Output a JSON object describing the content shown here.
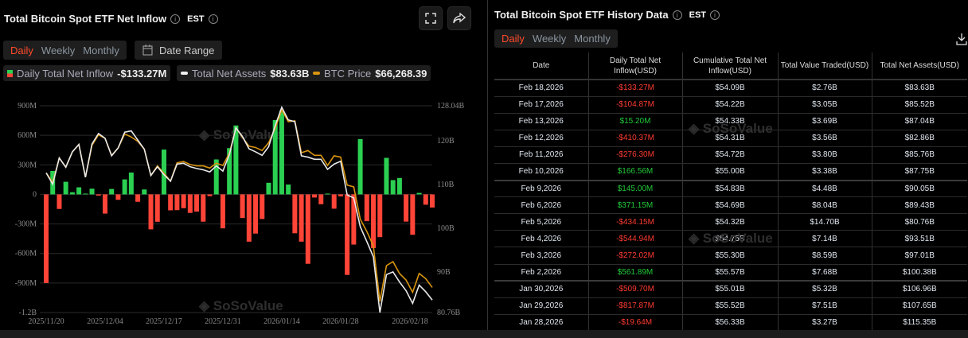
{
  "left": {
    "title": "Total Bitcoin Spot ETF Net Inflow",
    "timezone": "EST",
    "tabs": [
      "Daily",
      "Weekly",
      "Monthly"
    ],
    "active_tab": "Daily",
    "date_range_label": "Date Range",
    "legend": [
      {
        "label": "Daily Total Net Inflow",
        "value": "-$133.27M"
      },
      {
        "label": "Total Net Assets",
        "value": "$83.63B"
      },
      {
        "label": "BTC Price",
        "value": "$66,268.39"
      }
    ],
    "watermark": "SoSoValue"
  },
  "chart_data": {
    "type": "bar",
    "title": "Total Bitcoin Spot ETF Net Inflow",
    "colors": {
      "positive": "#2bd052",
      "negative": "#ff4438",
      "assets": "#e8e8e8",
      "price": "#d9950f"
    },
    "left_axis": {
      "ticks": [
        "900M",
        "600M",
        "300M",
        "0",
        "-300M",
        "-600M",
        "-900M",
        "-1.2B"
      ],
      "range_millions": [
        -1200,
        900
      ]
    },
    "right_axis": {
      "ticks": [
        "128.04B",
        "120B",
        "110B",
        "100B",
        "90B",
        "80.76B"
      ],
      "range_billions": [
        80.76,
        128.04
      ]
    },
    "x_tick_labels": [
      {
        "index": 0,
        "label": "2025/11/20"
      },
      {
        "index": 9,
        "label": "2025/12/04"
      },
      {
        "index": 18,
        "label": "2025/12/17"
      },
      {
        "index": 27,
        "label": "2025/12/31"
      },
      {
        "index": 36,
        "label": "2026/01/14"
      },
      {
        "index": 45,
        "label": "2026/01/28"
      },
      {
        "index": 59,
        "label": "2026/02/18"
      }
    ],
    "series": [
      {
        "name": "Daily Total Net Inflow (M USD)",
        "values": [
          -900,
          238,
          -148,
          128,
          22,
          72,
          8,
          58,
          -12,
          -195,
          55,
          -55,
          152,
          222,
          -75,
          50,
          -355,
          -278,
          455,
          -162,
          -160,
          -140,
          -188,
          -175,
          -277,
          -18,
          355,
          -345,
          470,
          700,
          -240,
          -480,
          -398,
          -250,
          118,
          755,
          850,
          100,
          -395,
          -480,
          -705,
          -32,
          -100,
          8,
          -145,
          -19.64,
          -817.87,
          -509.7,
          561.89,
          -272.02,
          -544.94,
          -434.15,
          371.15,
          145.0,
          166.56,
          -276.3,
          -410.37,
          15.2,
          -104.87,
          -133.27
        ]
      },
      {
        "name": "Total Net Assets (B USD)",
        "values": [
          112.7,
          110.1,
          116.1,
          114,
          117.5,
          119.2,
          111.7,
          119.3,
          121.7,
          120.6,
          116.6,
          118.4,
          122,
          122.3,
          120.2,
          118.1,
          112.1,
          114.1,
          112.3,
          110.8,
          114.7,
          114.9,
          114.1,
          113.7,
          113.4,
          112.9,
          114.3,
          113.1,
          116.9,
          123,
          121,
          118.2,
          117.5,
          116.7,
          118.7,
          123.5,
          127.7,
          124.8,
          124.4,
          116.6,
          116.3,
          115.8,
          115.8,
          113.5,
          114.7,
          115.35,
          107.65,
          106.96,
          100.38,
          97.01,
          93.51,
          80.76,
          89.43,
          90.05,
          87.75,
          85.76,
          82.86,
          87.04,
          85.52,
          83.63
        ]
      },
      {
        "name": "BTC Price (plotted on right-axis scale)",
        "values": [
          112.7,
          110.5,
          116.1,
          114,
          117.5,
          119.2,
          111.7,
          119,
          121.4,
          120.6,
          116.7,
          118.4,
          121.6,
          120.9,
          119.9,
          118.1,
          112.1,
          114.3,
          112.6,
          110.8,
          115,
          115.3,
          114.6,
          114.3,
          114.3,
          113.8,
          114.9,
          114.4,
          117.2,
          123,
          120.8,
          118.8,
          118.5,
          117.8,
          119.6,
          122.9,
          127.1,
          124.4,
          124.6,
          117.3,
          117.8,
          116.7,
          116.7,
          114.4,
          116.6,
          116.3,
          109.9,
          109.5,
          102.1,
          99.3,
          96,
          83.3,
          91.5,
          92.4,
          89.7,
          88.2,
          85.4,
          89.7,
          88.5,
          86.5
        ]
      }
    ]
  },
  "right": {
    "title": "Total Bitcoin Spot ETF History Data",
    "timezone": "EST",
    "tabs": [
      "Daily",
      "Weekly",
      "Monthly"
    ],
    "active_tab": "Daily",
    "columns": [
      "Date",
      "Daily Total Net Inflow(USD)",
      "Cumulative Total Net Inflow(USD)",
      "Total Value Traded(USD)",
      "Total Net Assets(USD)"
    ],
    "rows": [
      [
        "Feb 18,2026",
        "-$133.27M",
        "$54.09B",
        "$2.76B",
        "$83.63B"
      ],
      [
        "Feb 17,2026",
        "-$104.87M",
        "$54.22B",
        "$3.05B",
        "$85.52B"
      ],
      [
        "Feb 13,2026",
        "$15.20M",
        "$54.33B",
        "$3.69B",
        "$87.04B"
      ],
      [
        "Feb 12,2026",
        "-$410.37M",
        "$54.31B",
        "$3.56B",
        "$82.86B"
      ],
      [
        "Feb 11,2026",
        "-$276.30M",
        "$54.72B",
        "$3.80B",
        "$85.76B"
      ],
      [
        "Feb 10,2026",
        "$166.56M",
        "$55.00B",
        "$3.38B",
        "$87.75B"
      ],
      [
        "Feb 9,2026",
        "$145.00M",
        "$54.83B",
        "$4.48B",
        "$90.05B"
      ],
      [
        "Feb 6,2026",
        "$371.15M",
        "$54.69B",
        "$8.04B",
        "$89.43B"
      ],
      [
        "Feb 5,2026",
        "-$434.15M",
        "$54.32B",
        "$14.70B",
        "$80.76B"
      ],
      [
        "Feb 4,2026",
        "-$544.94M",
        "$54.75B",
        "$7.14B",
        "$93.51B"
      ],
      [
        "Feb 3,2026",
        "-$272.02M",
        "$55.30B",
        "$8.59B",
        "$97.01B"
      ],
      [
        "Feb 2,2026",
        "$561.89M",
        "$55.57B",
        "$7.68B",
        "$100.38B"
      ],
      [
        "Jan 30,2026",
        "-$509.70M",
        "$55.01B",
        "$5.32B",
        "$106.96B"
      ],
      [
        "Jan 29,2026",
        "-$817.87M",
        "$55.52B",
        "$7.51B",
        "$107.65B"
      ],
      [
        "Jan 28,2026",
        "-$19.64M",
        "$56.33B",
        "$3.27B",
        "$115.35B"
      ]
    ]
  }
}
